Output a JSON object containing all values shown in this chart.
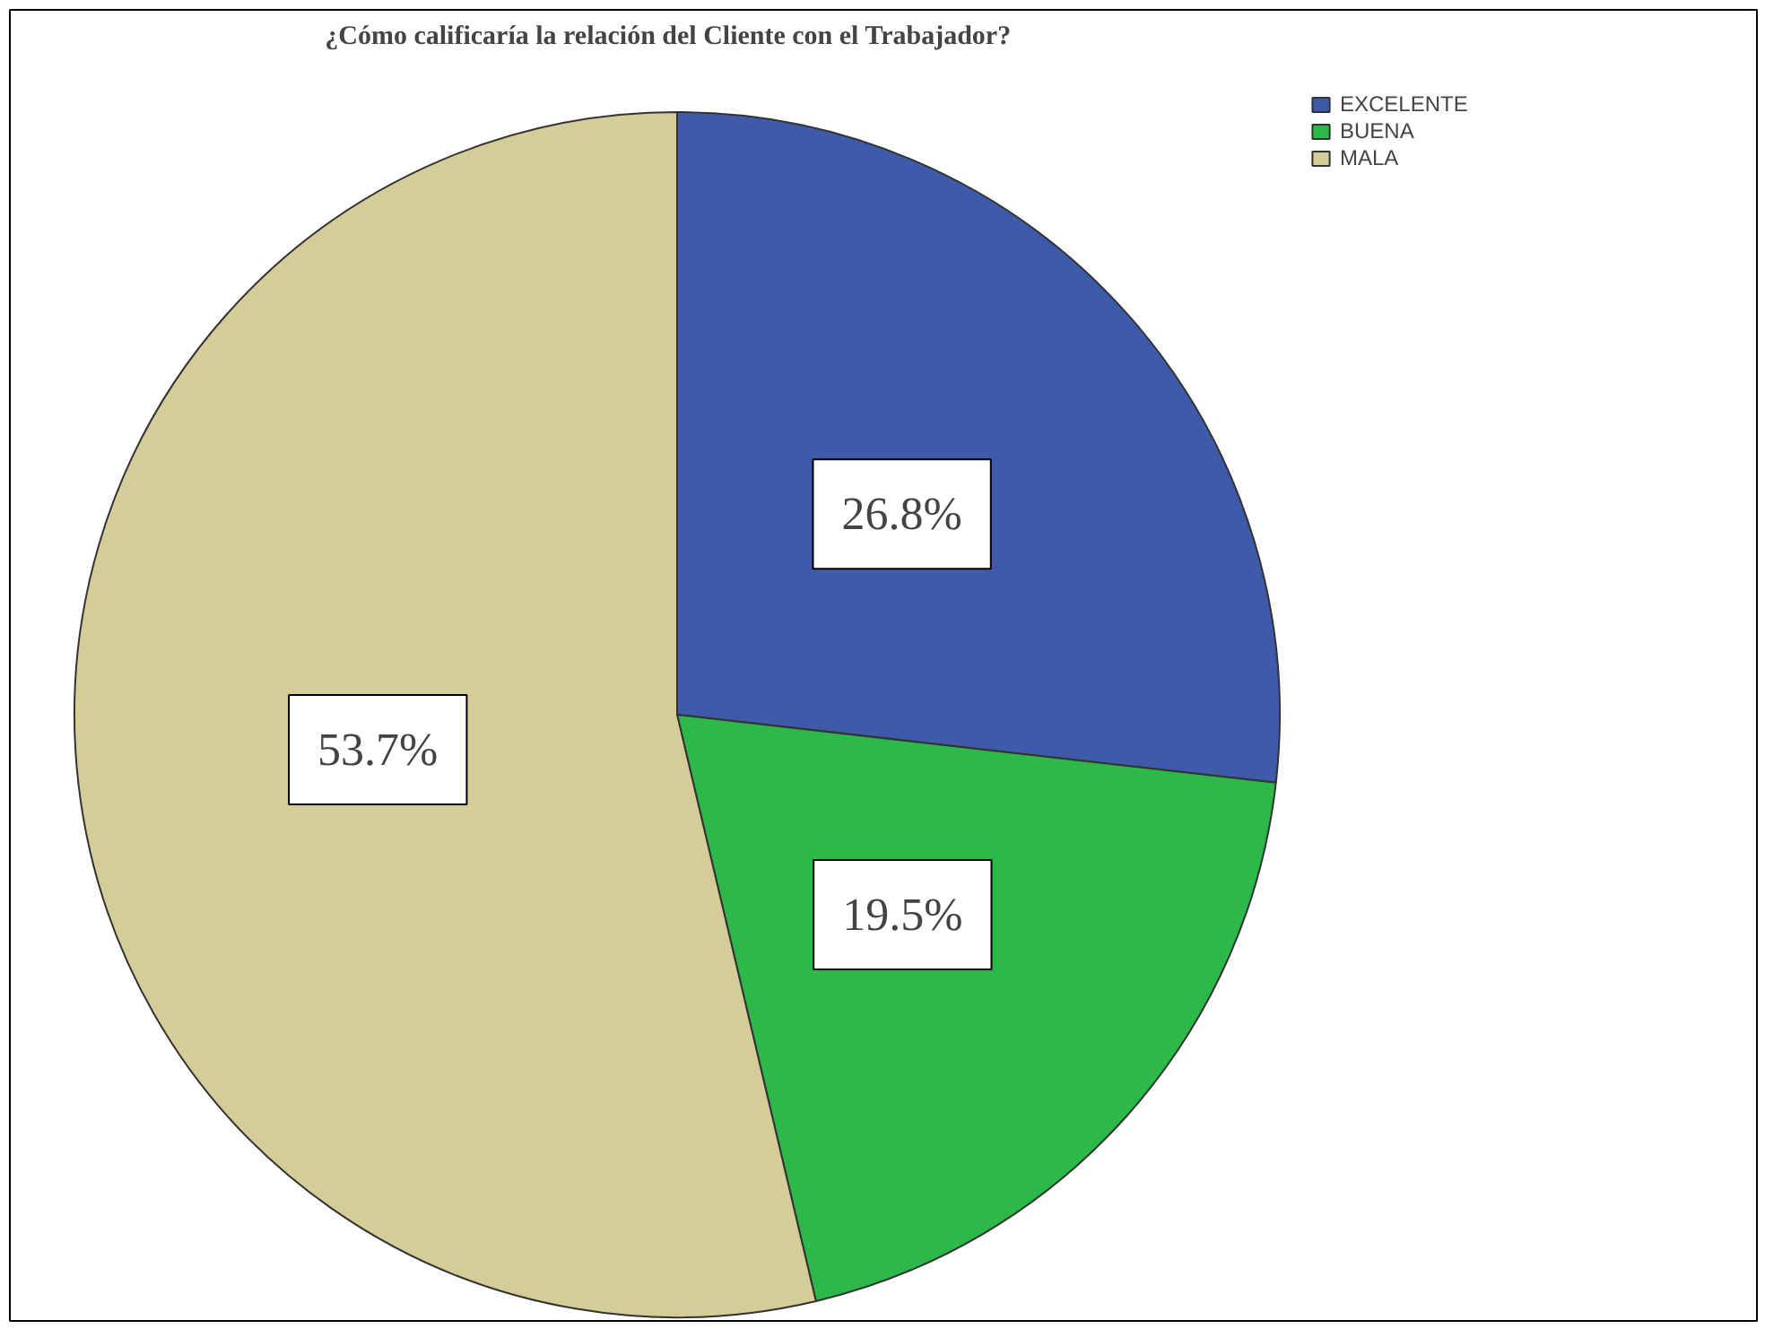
{
  "chart_data": {
    "type": "pie",
    "title": "¿Cómo calificaría la relación del Cliente con el Trabajador?",
    "categories": [
      "EXCELENTE",
      "BUENA",
      "MALA"
    ],
    "values": [
      26.8,
      19.5,
      53.7
    ],
    "colors": [
      "#3f5aa8",
      "#2db84a",
      "#d4cd98"
    ],
    "value_labels": [
      "26.8%",
      "19.5%",
      "53.7%"
    ],
    "legend": "top right"
  }
}
